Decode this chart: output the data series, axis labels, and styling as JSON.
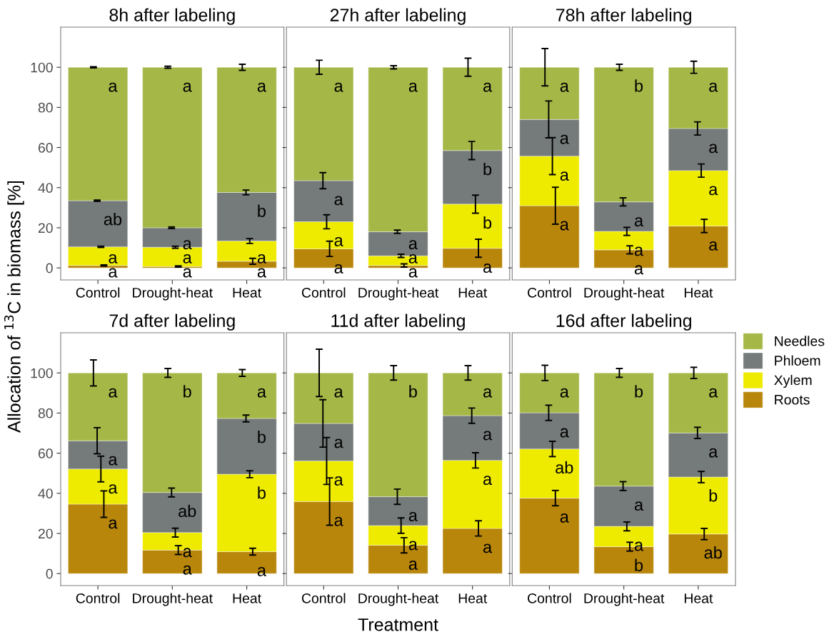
{
  "chart_data": [
    {
      "type": "bar",
      "stacked": true,
      "title": "8h after labeling",
      "ylabel": "Allocation of $^{13}$C in biomass [%]",
      "categories": [
        "Control",
        "Drought-heat",
        "Heat"
      ],
      "ylim": [
        -6,
        120
      ],
      "yticks": [
        0,
        20,
        40,
        60,
        80,
        100
      ],
      "grid": false,
      "series": [
        {
          "color": "#b8860b",
          "values": [
            1.2,
            0.7,
            3.3
          ],
          "errors": [
            0.3,
            0.3,
            1.5
          ],
          "value_labels": [
            "a",
            "a",
            "a"
          ]
        },
        {
          "color": "#eeeb00",
          "values": [
            9.3,
            9.6,
            10.1
          ],
          "errors": [
            0.3,
            0.5,
            1.2
          ],
          "value_labels": [
            "a",
            "a",
            "a"
          ]
        },
        {
          "color": "#757b7a",
          "values": [
            23,
            9.7,
            24.2
          ],
          "errors": [
            0.3,
            0.4,
            1.2
          ],
          "value_labels": [
            "ab",
            "a",
            "b"
          ]
        },
        {
          "color": "#a5b847",
          "values": [
            66.5,
            80,
            62.4
          ],
          "errors": [
            0.3,
            0.5,
            1.5
          ],
          "value_labels": [
            "a",
            "a",
            "a"
          ]
        }
      ]
    },
    {
      "type": "bar",
      "stacked": true,
      "title": "27h after labeling",
      "categories": [
        "Control",
        "Drought-heat",
        "Heat"
      ],
      "ylim": [
        -6,
        120
      ],
      "yticks": [
        0,
        20,
        40,
        60,
        80,
        100
      ],
      "grid": false,
      "tick_labels": "x",
      "series": [
        {
          "color": "#b8860b",
          "values": [
            9.5,
            1.2,
            9.8
          ],
          "errors": [
            3.8,
            0.8,
            4.5
          ],
          "value_labels": [
            "a",
            "a",
            "a"
          ]
        },
        {
          "color": "#eeeb00",
          "values": [
            13.5,
            4.8,
            22
          ],
          "errors": [
            3.5,
            0.8,
            4.5
          ],
          "value_labels": [
            "a",
            "a",
            "b"
          ]
        },
        {
          "color": "#757b7a",
          "values": [
            20.5,
            12,
            26.7
          ],
          "errors": [
            4,
            0.8,
            4.5
          ],
          "value_labels": [
            "a",
            "a",
            "b"
          ]
        },
        {
          "color": "#a5b847",
          "values": [
            56.5,
            82,
            41.5
          ],
          "errors": [
            3.5,
            0.8,
            4.5
          ],
          "value_labels": [
            "a",
            "a",
            "a"
          ]
        }
      ]
    },
    {
      "type": "bar",
      "stacked": true,
      "title": "78h after labeling",
      "categories": [
        "Control",
        "Drought-heat",
        "Heat"
      ],
      "ylim": [
        -6,
        120
      ],
      "yticks": [
        0,
        20,
        40,
        60,
        80,
        100
      ],
      "grid": false,
      "tick_labels": "x",
      "series": [
        {
          "color": "#b8860b",
          "values": [
            31,
            9,
            20.9
          ],
          "errors": [
            9.2,
            2,
            3.3
          ],
          "value_labels": [
            "a",
            "a",
            "a"
          ]
        },
        {
          "color": "#eeeb00",
          "values": [
            24.7,
            9.2,
            27.6
          ],
          "errors": [
            9.2,
            2,
            3.3
          ],
          "value_labels": [
            "a",
            "a",
            "a"
          ]
        },
        {
          "color": "#757b7a",
          "values": [
            18.3,
            14.7,
            21
          ],
          "errors": [
            9.2,
            2,
            3.3
          ],
          "value_labels": [
            "a",
            "a",
            "a"
          ]
        },
        {
          "color": "#a5b847",
          "values": [
            26,
            67.1,
            30.5
          ],
          "errors": [
            9.3,
            1.5,
            3
          ],
          "value_labels": [
            "a",
            "b",
            "a"
          ]
        }
      ]
    },
    {
      "type": "bar",
      "stacked": true,
      "title": "7d after labeling",
      "categories": [
        "Control",
        "Drought-heat",
        "Heat"
      ],
      "ylim": [
        -6,
        120
      ],
      "yticks": [
        0,
        20,
        40,
        60,
        80,
        100
      ],
      "grid": false,
      "series": [
        {
          "color": "#b8860b",
          "values": [
            34.6,
            11.7,
            10.9
          ],
          "errors": [
            6.6,
            2.2,
            1.7
          ],
          "value_labels": [
            "a",
            "a",
            "a"
          ]
        },
        {
          "color": "#eeeb00",
          "values": [
            17.5,
            8.7,
            38.6
          ],
          "errors": [
            6.4,
            2.2,
            1.7
          ],
          "value_labels": [
            "a",
            "a",
            "b"
          ]
        },
        {
          "color": "#757b7a",
          "values": [
            14.1,
            20,
            27.8
          ],
          "errors": [
            6.5,
            2.2,
            1.7
          ],
          "value_labels": [
            "a",
            "ab",
            "b"
          ]
        },
        {
          "color": "#a5b847",
          "values": [
            33.8,
            59.6,
            22.7
          ],
          "errors": [
            6.5,
            2.2,
            1.7
          ],
          "value_labels": [
            "a",
            "b",
            "a"
          ]
        }
      ]
    },
    {
      "type": "bar",
      "stacked": true,
      "title": "11d after labeling",
      "xlabel": "Treatment",
      "categories": [
        "Control",
        "Drought-heat",
        "Heat"
      ],
      "ylim": [
        -6,
        120
      ],
      "yticks": [
        0,
        20,
        40,
        60,
        80,
        100
      ],
      "grid": false,
      "tick_labels": "x",
      "series": [
        {
          "color": "#b8860b",
          "values": [
            35.9,
            14.1,
            22.5
          ],
          "errors": [
            11.8,
            3.8,
            3.8
          ],
          "value_labels": [
            "a",
            "a",
            "a"
          ]
        },
        {
          "color": "#eeeb00",
          "values": [
            20.2,
            9.8,
            33.9
          ],
          "errors": [
            11.7,
            3.8,
            3.8
          ],
          "value_labels": [
            "a",
            "a",
            "a"
          ]
        },
        {
          "color": "#757b7a",
          "values": [
            18.7,
            14.4,
            22.3
          ],
          "errors": [
            11.8,
            3.8,
            3.8
          ],
          "value_labels": [
            "a",
            "a",
            "a"
          ]
        },
        {
          "color": "#a5b847",
          "values": [
            25.2,
            61.7,
            21.3
          ],
          "errors": [
            11.8,
            3.6,
            3.6
          ],
          "value_labels": [
            "a",
            "b",
            "a"
          ]
        }
      ]
    },
    {
      "type": "bar",
      "stacked": true,
      "title": "16d after labeling",
      "categories": [
        "Control",
        "Drought-heat",
        "Heat"
      ],
      "ylim": [
        -6,
        120
      ],
      "yticks": [
        0,
        20,
        40,
        60,
        80,
        100
      ],
      "grid": false,
      "tick_labels": "x",
      "legend": "right",
      "series": [
        {
          "name": "Roots",
          "color": "#b8860b",
          "values": [
            37.6,
            13.4,
            19.7
          ],
          "errors": [
            3.8,
            2.2,
            2.8
          ],
          "value_labels": [
            "a",
            "b",
            "ab"
          ]
        },
        {
          "name": "Xylem",
          "color": "#eeeb00",
          "values": [
            24.5,
            10.1,
            28.4
          ],
          "errors": [
            3.8,
            2.2,
            2.8
          ],
          "value_labels": [
            "ab",
            "a",
            "b"
          ]
        },
        {
          "name": "Phloem",
          "color": "#757b7a",
          "values": [
            18,
            20.1,
            22
          ],
          "errors": [
            3.8,
            2.2,
            2.8
          ],
          "value_labels": [
            "a",
            "a",
            "a"
          ]
        },
        {
          "name": "Needles",
          "color": "#a5b847",
          "values": [
            19.9,
            56.4,
            29.9
          ],
          "errors": [
            3.8,
            2.2,
            2.8
          ],
          "value_labels": [
            "a",
            "b",
            "a"
          ]
        }
      ]
    }
  ]
}
